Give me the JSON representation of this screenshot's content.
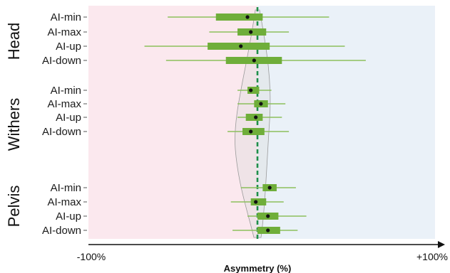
{
  "chart_data": {
    "type": "boxplot",
    "xlabel": "Asymmetry (%)",
    "xlim": [
      -100,
      100
    ],
    "x_tick_labels": {
      "min": "-100%",
      "max": "+100%"
    },
    "reference_line_x": 0,
    "colors": {
      "negative_region": "#fbe8ee",
      "positive_region": "#eaf1f8",
      "box": "#6fae3a",
      "whisker": "#8cbf5c",
      "median": "#111111",
      "reference_line": "#1f8f4a",
      "violin_fill": "#d9d9d9",
      "violin_stroke": "#9a9a9a"
    },
    "groups": [
      {
        "name": "Head",
        "rows": [
          {
            "label": "AI-min",
            "whisker": [
              -54,
              41
            ],
            "box": [
              -25,
              3
            ],
            "median": -6
          },
          {
            "label": "AI-max",
            "whisker": [
              -29,
              18
            ],
            "box": [
              -12,
              5
            ],
            "median": -4
          },
          {
            "label": "AI-up",
            "whisker": [
              -68,
              50
            ],
            "box": [
              -30,
              7
            ],
            "median": -10
          },
          {
            "label": "AI-down",
            "whisker": [
              -55,
              62
            ],
            "box": [
              -19,
              14
            ],
            "median": -2
          }
        ]
      },
      {
        "name": "Withers",
        "rows": [
          {
            "label": "AI-min",
            "whisker": [
              -12,
              8
            ],
            "box": [
              -6,
              1
            ],
            "median": -4
          },
          {
            "label": "AI-max",
            "whisker": [
              -12,
              16
            ],
            "box": [
              -2,
              6
            ],
            "median": 2
          },
          {
            "label": "AI-up",
            "whisker": [
              -12,
              14
            ],
            "box": [
              -7,
              3
            ],
            "median": -1
          },
          {
            "label": "AI-down",
            "whisker": [
              -18,
              18
            ],
            "box": [
              -9,
              4
            ],
            "median": -4
          }
        ]
      },
      {
        "name": "Pelvis",
        "rows": [
          {
            "label": "AI-min",
            "whisker": [
              -10,
              22
            ],
            "box": [
              3,
              11
            ],
            "median": 7
          },
          {
            "label": "AI-max",
            "whisker": [
              -16,
              15
            ],
            "box": [
              -4,
              5
            ],
            "median": -1
          },
          {
            "label": "AI-up",
            "whisker": [
              -6,
              28
            ],
            "box": [
              0,
              12
            ],
            "median": 6
          },
          {
            "label": "AI-down",
            "whisker": [
              -15,
              23
            ],
            "box": [
              0,
              13
            ],
            "median": 6
          }
        ]
      }
    ]
  }
}
